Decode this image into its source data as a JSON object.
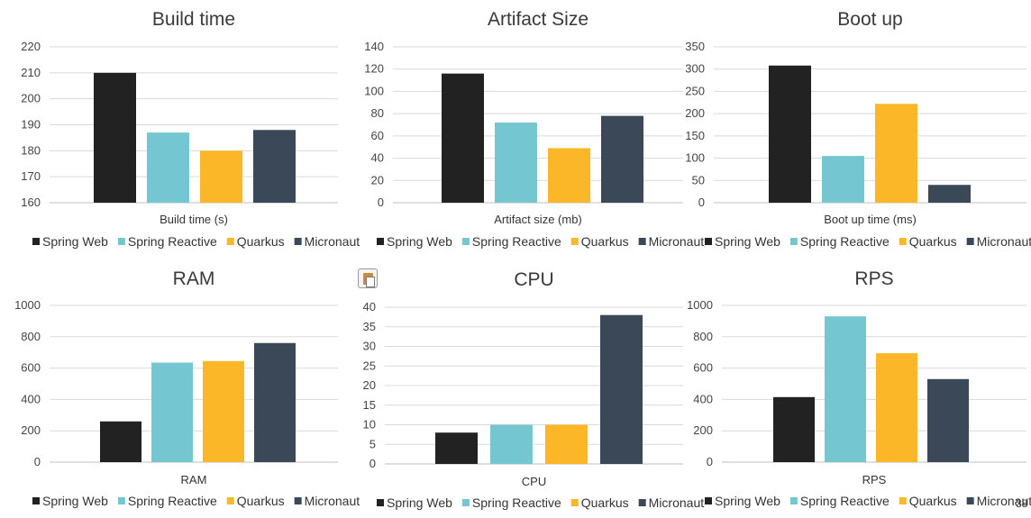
{
  "colors": {
    "Spring Web": "#222222",
    "Spring Reactive": "#74c6d1",
    "Quarkus": "#fbb727",
    "Micronaut": "#3a4858",
    "grid": "#d9d9d9",
    "axis": "#bfbfbf"
  },
  "paste_icon": "clipboard-paste-icon",
  "slide_number": "38",
  "chart_data": [
    {
      "type": "bar",
      "title": "Build time",
      "xlabel": "Build time (s)",
      "ylim": [
        160,
        220
      ],
      "yticks": [
        160,
        170,
        180,
        190,
        200,
        210,
        220
      ],
      "legend": "bottom",
      "grid": true,
      "series": [
        {
          "name": "Spring Web",
          "value": 210
        },
        {
          "name": "Spring Reactive",
          "value": 187
        },
        {
          "name": "Quarkus",
          "value": 180
        },
        {
          "name": "Micronaut",
          "value": 188
        }
      ]
    },
    {
      "type": "bar",
      "title": "Artifact Size",
      "xlabel": "Artifact size (mb)",
      "ylim": [
        0,
        140
      ],
      "yticks": [
        0,
        20,
        40,
        60,
        80,
        100,
        120,
        140
      ],
      "legend": "bottom",
      "grid": true,
      "series": [
        {
          "name": "Spring Web",
          "value": 116
        },
        {
          "name": "Spring Reactive",
          "value": 72
        },
        {
          "name": "Quarkus",
          "value": 49
        },
        {
          "name": "Micronaut",
          "value": 78
        }
      ]
    },
    {
      "type": "bar",
      "title": "Boot up",
      "xlabel": "Boot up time (ms)",
      "ylim": [
        0,
        350
      ],
      "yticks": [
        0,
        50,
        100,
        150,
        200,
        250,
        300,
        350
      ],
      "legend": "bottom",
      "grid": true,
      "series": [
        {
          "name": "Spring Web",
          "value": 308
        },
        {
          "name": "Spring Reactive",
          "value": 105
        },
        {
          "name": "Quarkus",
          "value": 222
        },
        {
          "name": "Micronaut",
          "value": 40
        }
      ]
    },
    {
      "type": "bar",
      "title": "RAM",
      "xlabel": "RAM",
      "ylim": [
        0,
        1000
      ],
      "yticks": [
        0,
        200,
        400,
        600,
        800,
        1000
      ],
      "legend": "bottom",
      "grid": true,
      "series": [
        {
          "name": "Spring Web",
          "value": 260
        },
        {
          "name": "Spring Reactive",
          "value": 635
        },
        {
          "name": "Quarkus",
          "value": 645
        },
        {
          "name": "Micronaut",
          "value": 760
        }
      ]
    },
    {
      "type": "bar",
      "title": "CPU",
      "xlabel": "CPU",
      "ylim": [
        0,
        40
      ],
      "yticks": [
        0,
        5,
        10,
        15,
        20,
        25,
        30,
        35,
        40
      ],
      "legend": "bottom",
      "grid": true,
      "series": [
        {
          "name": "Spring Web",
          "value": 8
        },
        {
          "name": "Spring Reactive",
          "value": 10
        },
        {
          "name": "Quarkus",
          "value": 10
        },
        {
          "name": "Micronaut",
          "value": 38
        }
      ]
    },
    {
      "type": "bar",
      "title": "RPS",
      "xlabel": "RPS",
      "ylim": [
        0,
        1000
      ],
      "yticks": [
        0,
        200,
        400,
        600,
        800,
        1000
      ],
      "legend": "bottom",
      "grid": true,
      "series": [
        {
          "name": "Spring Web",
          "value": 415
        },
        {
          "name": "Spring Reactive",
          "value": 930
        },
        {
          "name": "Quarkus",
          "value": 695
        },
        {
          "name": "Micronaut",
          "value": 530
        }
      ]
    }
  ]
}
